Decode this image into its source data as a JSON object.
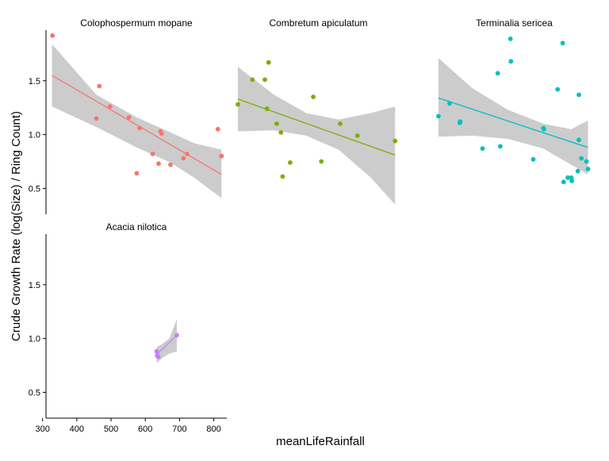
{
  "chart_data": {
    "type": "scatter",
    "xlabel": "meanLifeRainfall",
    "ylabel": "Crude Growth Rate (log(Size) / Ring Count)",
    "x_ticks": [
      300,
      400,
      500,
      600,
      700,
      800
    ],
    "y_ticks": [
      0.5,
      1.0,
      1.5
    ],
    "y_tick_labels": [
      "0.5",
      "1.0",
      "1.5"
    ],
    "grid": false,
    "legend": "none",
    "band_color": "#cccccc",
    "panels": [
      {
        "title": "Colophospermum mopane",
        "color": "#F8766D",
        "xlim": [
          310,
          615
        ],
        "ylim": [
          0.26,
          1.97
        ],
        "points": [
          [
            321,
            1.92
          ],
          [
            395,
            1.15
          ],
          [
            400,
            1.45
          ],
          [
            418,
            1.26
          ],
          [
            450,
            1.16
          ],
          [
            463,
            0.64
          ],
          [
            468,
            1.06
          ],
          [
            490,
            0.82
          ],
          [
            500,
            0.73
          ],
          [
            503,
            1.03
          ],
          [
            505,
            1.01
          ],
          [
            520,
            0.72
          ],
          [
            542,
            0.78
          ],
          [
            548,
            0.82
          ],
          [
            600,
            1.05
          ],
          [
            606,
            0.8
          ]
        ],
        "fit": {
          "x": [
            320,
            606
          ],
          "y": [
            1.55,
            0.63
          ]
        },
        "band": {
          "x": [
            320,
            395,
            463,
            520,
            560,
            606
          ],
          "upper": [
            1.84,
            1.37,
            1.16,
            1.02,
            0.92,
            0.86
          ],
          "lower": [
            1.26,
            1.07,
            0.88,
            0.74,
            0.6,
            0.41
          ]
        }
      },
      {
        "title": "Combretum apiculatum",
        "color": "#7CAE00",
        "xlim": [
          310,
          615
        ],
        "ylim": [
          0.26,
          1.97
        ],
        "points": [
          [
            313,
            1.28
          ],
          [
            340,
            1.51
          ],
          [
            363,
            1.51
          ],
          [
            367,
            1.24
          ],
          [
            370,
            1.67
          ],
          [
            385,
            1.1
          ],
          [
            393,
            1.02
          ],
          [
            396,
            0.61
          ],
          [
            410,
            0.74
          ],
          [
            453,
            1.35
          ],
          [
            468,
            0.75
          ],
          [
            503,
            1.1
          ],
          [
            535,
            0.99
          ],
          [
            605,
            0.94
          ]
        ],
        "fit": {
          "x": [
            313,
            605
          ],
          "y": [
            1.33,
            0.81
          ]
        },
        "band": {
          "x": [
            313,
            380,
            440,
            500,
            560,
            605
          ],
          "upper": [
            1.63,
            1.37,
            1.2,
            1.14,
            1.2,
            1.26
          ],
          "lower": [
            1.03,
            1.04,
            0.99,
            0.86,
            0.6,
            0.35
          ]
        }
      },
      {
        "title": "Terminalia sericea",
        "color": "#00BFC4",
        "xlim": [
          310,
          615
        ],
        "ylim": [
          0.26,
          1.97
        ],
        "points": [
          [
            313,
            1.17
          ],
          [
            335,
            1.29
          ],
          [
            355,
            1.11
          ],
          [
            356,
            1.12
          ],
          [
            400,
            0.87
          ],
          [
            430,
            1.57
          ],
          [
            435,
            0.89
          ],
          [
            455,
            1.89
          ],
          [
            456,
            1.68
          ],
          [
            500,
            0.77
          ],
          [
            520,
            1.06
          ],
          [
            521,
            1.05
          ],
          [
            548,
            1.42
          ],
          [
            558,
            1.85
          ],
          [
            560,
            0.56
          ],
          [
            568,
            0.6
          ],
          [
            575,
            0.6
          ],
          [
            576,
            0.57
          ],
          [
            588,
            0.66
          ],
          [
            590,
            1.37
          ],
          [
            590,
            0.95
          ],
          [
            595,
            0.78
          ],
          [
            605,
            0.75
          ],
          [
            608,
            0.68
          ]
        ],
        "fit": {
          "x": [
            313,
            608
          ],
          "y": [
            1.34,
            0.88
          ]
        },
        "band": {
          "x": [
            313,
            380,
            450,
            520,
            575,
            608
          ],
          "upper": [
            1.71,
            1.43,
            1.23,
            1.1,
            1.05,
            1.13
          ],
          "lower": [
            0.98,
            0.99,
            0.96,
            0.87,
            0.72,
            0.63
          ]
        }
      },
      {
        "title": "Acacia nilotica",
        "color": "#C77CFF",
        "xlim": [
          310,
          838
        ],
        "ylim": [
          0.26,
          1.97
        ],
        "points": [
          [
            633,
            0.88
          ],
          [
            635,
            0.84
          ],
          [
            638,
            0.83
          ],
          [
            692,
            1.03
          ]
        ],
        "fit": {
          "x": [
            633,
            692
          ],
          "y": [
            0.85,
            1.03
          ]
        },
        "band": {
          "x": [
            633,
            650,
            670,
            692
          ],
          "upper": [
            0.92,
            0.95,
            1.0,
            1.18
          ],
          "lower": [
            0.77,
            0.82,
            0.86,
            0.88
          ]
        }
      }
    ]
  }
}
